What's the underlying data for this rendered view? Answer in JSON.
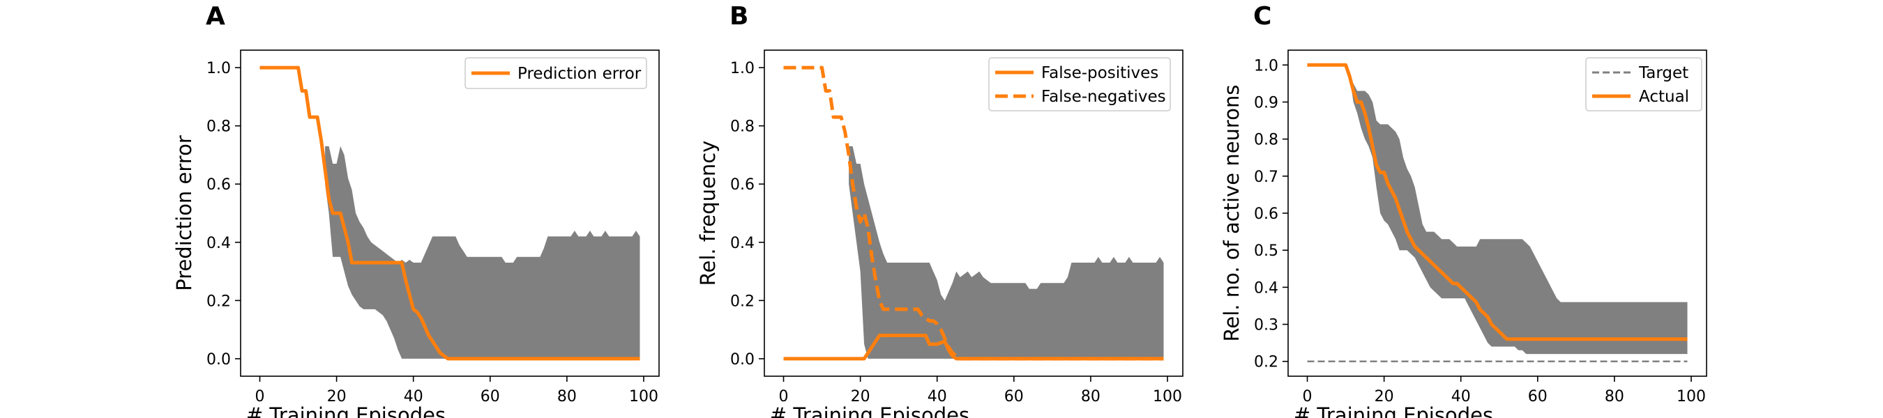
{
  "colors": {
    "series": "#ff7f0e",
    "band": "#808080",
    "target": "#808080",
    "axis": "#000000"
  },
  "chart_data": [
    {
      "panel": "A",
      "type": "line",
      "xlabel": "# Training Episodes",
      "ylabel": "Prediction error",
      "xlim": [
        -5,
        104
      ],
      "ylim": [
        -0.06,
        1.06
      ],
      "xticks": [
        0,
        20,
        40,
        60,
        80,
        100
      ],
      "yticks": [
        0.0,
        0.2,
        0.4,
        0.6,
        0.8,
        1.0
      ],
      "legend_position": "top-right",
      "band": {
        "x": [
          17,
          18,
          19,
          20,
          21,
          22,
          23,
          24,
          25,
          26,
          27,
          28,
          29,
          30,
          31,
          32,
          33,
          34,
          35,
          36,
          37,
          38,
          39,
          40,
          41,
          42,
          43,
          44,
          45,
          46,
          47,
          48,
          49,
          50,
          51,
          52,
          53,
          54,
          55,
          56,
          57,
          58,
          59,
          60,
          61,
          62,
          63,
          64,
          65,
          66,
          67,
          68,
          69,
          70,
          71,
          72,
          73,
          74,
          75,
          76,
          77,
          78,
          79,
          80,
          81,
          82,
          83,
          84,
          85,
          86,
          87,
          88,
          89,
          90,
          91,
          92,
          93,
          94,
          95,
          96,
          97,
          98,
          99
        ],
        "upper": [
          0.73,
          0.73,
          0.67,
          0.67,
          0.73,
          0.7,
          0.62,
          0.58,
          0.5,
          0.47,
          0.45,
          0.42,
          0.4,
          0.39,
          0.38,
          0.37,
          0.36,
          0.35,
          0.34,
          0.33,
          0.34,
          0.33,
          0.34,
          0.33,
          0.33,
          0.33,
          0.36,
          0.39,
          0.42,
          0.42,
          0.42,
          0.42,
          0.42,
          0.42,
          0.42,
          0.39,
          0.37,
          0.35,
          0.35,
          0.35,
          0.35,
          0.35,
          0.35,
          0.35,
          0.35,
          0.35,
          0.35,
          0.33,
          0.33,
          0.33,
          0.35,
          0.35,
          0.35,
          0.35,
          0.35,
          0.35,
          0.35,
          0.38,
          0.42,
          0.42,
          0.42,
          0.42,
          0.42,
          0.42,
          0.42,
          0.44,
          0.42,
          0.42,
          0.42,
          0.44,
          0.42,
          0.42,
          0.42,
          0.44,
          0.42,
          0.42,
          0.42,
          0.42,
          0.42,
          0.42,
          0.42,
          0.44,
          0.42
        ],
        "lower": [
          0.6,
          0.5,
          0.35,
          0.35,
          0.35,
          0.3,
          0.25,
          0.22,
          0.2,
          0.18,
          0.17,
          0.17,
          0.17,
          0.17,
          0.16,
          0.15,
          0.13,
          0.1,
          0.07,
          0.03,
          0.0,
          0.0,
          0.0,
          0.0,
          0.0,
          0.0,
          0.0,
          0.0,
          0.0,
          0.0,
          0.0,
          0.0,
          0.0,
          0.0,
          0.0,
          0.0,
          0.0,
          0.0,
          0.0,
          0.0,
          0.0,
          0.0,
          0.0,
          0.0,
          0.0,
          0.0,
          0.0,
          0.0,
          0.0,
          0.0,
          0.0,
          0.0,
          0.0,
          0.0,
          0.0,
          0.0,
          0.0,
          0.0,
          0.0,
          0.0,
          0.0,
          0.0,
          0.0,
          0.0,
          0.0,
          0.0,
          0.0,
          0.0,
          0.0,
          0.0,
          0.0,
          0.0,
          0.0,
          0.0,
          0.0,
          0.0,
          0.0,
          0.0,
          0.0,
          0.0,
          0.0,
          0.0,
          0.0
        ]
      },
      "series": [
        {
          "name": "Prediction error",
          "style": "solid",
          "x": [
            0,
            10,
            11,
            12,
            13,
            14,
            15,
            16,
            17,
            18,
            19,
            20,
            21,
            22,
            23,
            24,
            25,
            30,
            35,
            37,
            38,
            39,
            40,
            41,
            42,
            43,
            44,
            45,
            46,
            47,
            48,
            49,
            50,
            60,
            70,
            80,
            90,
            99
          ],
          "y": [
            1.0,
            1.0,
            0.92,
            0.92,
            0.83,
            0.83,
            0.83,
            0.75,
            0.65,
            0.55,
            0.5,
            0.5,
            0.5,
            0.45,
            0.4,
            0.33,
            0.33,
            0.33,
            0.33,
            0.33,
            0.27,
            0.22,
            0.17,
            0.16,
            0.14,
            0.11,
            0.08,
            0.06,
            0.04,
            0.02,
            0.01,
            0.0,
            0.0,
            0.0,
            0.0,
            0.0,
            0.0,
            0.0
          ]
        }
      ]
    },
    {
      "panel": "B",
      "type": "line",
      "xlabel": "# Training Episodes",
      "ylabel": "Rel. frequency",
      "xlim": [
        -5,
        104
      ],
      "ylim": [
        -0.06,
        1.06
      ],
      "xticks": [
        0,
        20,
        40,
        60,
        80,
        100
      ],
      "yticks": [
        0.0,
        0.2,
        0.4,
        0.6,
        0.8,
        1.0
      ],
      "legend_position": "top-right",
      "band": {
        "x": [
          17,
          18,
          19,
          20,
          21,
          22,
          23,
          24,
          25,
          26,
          27,
          28,
          29,
          30,
          31,
          32,
          33,
          34,
          35,
          36,
          37,
          38,
          39,
          40,
          41,
          42,
          43,
          44,
          45,
          46,
          47,
          48,
          49,
          50,
          51,
          52,
          53,
          54,
          55,
          56,
          57,
          58,
          59,
          60,
          61,
          62,
          63,
          64,
          65,
          66,
          67,
          68,
          69,
          70,
          71,
          72,
          73,
          74,
          75,
          76,
          77,
          78,
          79,
          80,
          81,
          82,
          83,
          84,
          85,
          86,
          87,
          88,
          89,
          90,
          91,
          92,
          93,
          94,
          95,
          96,
          97,
          98,
          99
        ],
        "upper": [
          0.73,
          0.73,
          0.67,
          0.67,
          0.6,
          0.55,
          0.5,
          0.45,
          0.4,
          0.36,
          0.33,
          0.33,
          0.33,
          0.33,
          0.33,
          0.33,
          0.33,
          0.33,
          0.33,
          0.33,
          0.33,
          0.33,
          0.3,
          0.27,
          0.22,
          0.2,
          0.23,
          0.26,
          0.3,
          0.28,
          0.29,
          0.3,
          0.28,
          0.29,
          0.3,
          0.28,
          0.27,
          0.26,
          0.26,
          0.26,
          0.26,
          0.26,
          0.26,
          0.26,
          0.26,
          0.26,
          0.26,
          0.24,
          0.24,
          0.24,
          0.26,
          0.26,
          0.26,
          0.26,
          0.26,
          0.26,
          0.26,
          0.28,
          0.33,
          0.33,
          0.33,
          0.33,
          0.33,
          0.33,
          0.33,
          0.35,
          0.33,
          0.33,
          0.33,
          0.35,
          0.33,
          0.33,
          0.33,
          0.35,
          0.33,
          0.33,
          0.33,
          0.33,
          0.33,
          0.33,
          0.33,
          0.35,
          0.33
        ],
        "lower": [
          0.6,
          0.5,
          0.4,
          0.3,
          0.05,
          0.0,
          0.0,
          0.0,
          0.0,
          0.0,
          0.0,
          0.0,
          0.0,
          0.0,
          0.0,
          0.0,
          0.0,
          0.0,
          0.0,
          0.0,
          0.0,
          0.0,
          0.0,
          0.0,
          0.0,
          0.0,
          0.0,
          0.0,
          0.0,
          0.0,
          0.0,
          0.0,
          0.0,
          0.0,
          0.0,
          0.0,
          0.0,
          0.0,
          0.0,
          0.0,
          0.0,
          0.0,
          0.0,
          0.0,
          0.0,
          0.0,
          0.0,
          0.0,
          0.0,
          0.0,
          0.0,
          0.0,
          0.0,
          0.0,
          0.0,
          0.0,
          0.0,
          0.0,
          0.0,
          0.0,
          0.0,
          0.0,
          0.0,
          0.0,
          0.0,
          0.0,
          0.0,
          0.0,
          0.0,
          0.0,
          0.0,
          0.0,
          0.0,
          0.0,
          0.0,
          0.0,
          0.0,
          0.0,
          0.0,
          0.0,
          0.0,
          0.0,
          0.0
        ]
      },
      "series": [
        {
          "name": "False-positives",
          "style": "solid",
          "x": [
            0,
            20,
            21,
            22,
            23,
            24,
            25,
            26,
            30,
            35,
            37,
            38,
            40,
            42,
            43,
            44,
            45,
            46,
            50,
            60,
            70,
            80,
            90,
            99
          ],
          "y": [
            0.0,
            0.0,
            0.0,
            0.02,
            0.04,
            0.06,
            0.08,
            0.08,
            0.08,
            0.08,
            0.08,
            0.05,
            0.05,
            0.06,
            0.03,
            0.01,
            0.0,
            0.0,
            0.0,
            0.0,
            0.0,
            0.0,
            0.0,
            0.0
          ]
        },
        {
          "name": "False-negatives",
          "style": "dashed",
          "x": [
            0,
            10,
            11,
            12,
            13,
            14,
            15,
            16,
            17,
            18,
            19,
            20,
            21,
            22,
            23,
            24,
            25,
            26,
            28,
            30,
            32,
            35,
            36,
            37,
            38,
            39,
            40,
            41,
            42,
            43,
            44,
            45,
            46,
            50,
            60,
            70,
            80,
            90,
            99
          ],
          "y": [
            1.0,
            1.0,
            0.92,
            0.92,
            0.83,
            0.83,
            0.83,
            0.78,
            0.7,
            0.6,
            0.52,
            0.47,
            0.5,
            0.45,
            0.35,
            0.27,
            0.2,
            0.17,
            0.17,
            0.17,
            0.17,
            0.17,
            0.15,
            0.14,
            0.13,
            0.13,
            0.12,
            0.1,
            0.07,
            0.04,
            0.02,
            0.01,
            0.0,
            0.0,
            0.0,
            0.0,
            0.0,
            0.0,
            0.0
          ]
        }
      ]
    },
    {
      "panel": "C",
      "type": "line",
      "xlabel": "# Training Episodes",
      "ylabel": "Rel. no. of active neurons",
      "xlim": [
        -5,
        104
      ],
      "ylim": [
        0.16,
        1.04
      ],
      "xticks": [
        0,
        20,
        40,
        60,
        80,
        100
      ],
      "yticks": [
        0.2,
        0.3,
        0.4,
        0.5,
        0.6,
        0.7,
        0.8,
        0.9,
        1.0
      ],
      "legend_position": "top-right",
      "band": {
        "x": [
          10,
          11,
          12,
          13,
          14,
          15,
          16,
          17,
          18,
          19,
          20,
          21,
          22,
          23,
          24,
          25,
          26,
          27,
          28,
          29,
          30,
          31,
          32,
          33,
          34,
          35,
          36,
          37,
          38,
          39,
          40,
          41,
          42,
          43,
          44,
          45,
          46,
          47,
          48,
          49,
          50,
          51,
          52,
          53,
          54,
          55,
          56,
          57,
          58,
          59,
          60,
          61,
          62,
          63,
          64,
          65,
          66,
          70,
          80,
          90,
          99
        ],
        "upper": [
          1.0,
          0.97,
          0.95,
          0.93,
          0.93,
          0.93,
          0.92,
          0.9,
          0.85,
          0.84,
          0.84,
          0.84,
          0.83,
          0.82,
          0.8,
          0.75,
          0.72,
          0.7,
          0.67,
          0.62,
          0.57,
          0.55,
          0.55,
          0.55,
          0.54,
          0.53,
          0.53,
          0.53,
          0.52,
          0.51,
          0.51,
          0.51,
          0.51,
          0.51,
          0.51,
          0.53,
          0.53,
          0.53,
          0.53,
          0.53,
          0.53,
          0.53,
          0.53,
          0.53,
          0.53,
          0.53,
          0.53,
          0.52,
          0.51,
          0.49,
          0.47,
          0.45,
          0.43,
          0.41,
          0.39,
          0.37,
          0.36,
          0.36,
          0.36,
          0.36,
          0.36
        ],
        "lower": [
          1.0,
          0.97,
          0.9,
          0.87,
          0.83,
          0.8,
          0.78,
          0.75,
          0.67,
          0.6,
          0.58,
          0.57,
          0.55,
          0.53,
          0.5,
          0.5,
          0.5,
          0.49,
          0.48,
          0.46,
          0.44,
          0.42,
          0.4,
          0.39,
          0.38,
          0.37,
          0.37,
          0.37,
          0.37,
          0.37,
          0.37,
          0.37,
          0.35,
          0.33,
          0.31,
          0.29,
          0.27,
          0.25,
          0.24,
          0.24,
          0.24,
          0.24,
          0.24,
          0.24,
          0.24,
          0.23,
          0.23,
          0.22,
          0.22,
          0.22,
          0.22,
          0.22,
          0.22,
          0.22,
          0.22,
          0.22,
          0.22,
          0.22,
          0.22,
          0.22,
          0.22
        ]
      },
      "series": [
        {
          "name": "Target",
          "style": "dashed-thin",
          "x": [
            0,
            99
          ],
          "y": [
            0.2,
            0.2
          ]
        },
        {
          "name": "Actual",
          "style": "solid",
          "x": [
            0,
            10,
            11,
            12,
            13,
            14,
            15,
            16,
            17,
            18,
            19,
            20,
            21,
            22,
            23,
            24,
            25,
            26,
            27,
            28,
            29,
            30,
            31,
            32,
            33,
            34,
            35,
            36,
            37,
            38,
            39,
            40,
            41,
            42,
            43,
            44,
            45,
            46,
            47,
            48,
            49,
            50,
            51,
            52,
            53,
            60,
            70,
            80,
            90,
            99
          ],
          "y": [
            1.0,
            1.0,
            0.97,
            0.93,
            0.9,
            0.9,
            0.87,
            0.83,
            0.78,
            0.73,
            0.71,
            0.71,
            0.68,
            0.66,
            0.64,
            0.61,
            0.58,
            0.55,
            0.53,
            0.51,
            0.5,
            0.49,
            0.48,
            0.47,
            0.46,
            0.45,
            0.44,
            0.43,
            0.42,
            0.41,
            0.41,
            0.4,
            0.39,
            0.38,
            0.37,
            0.36,
            0.34,
            0.33,
            0.32,
            0.3,
            0.29,
            0.28,
            0.27,
            0.26,
            0.26,
            0.26,
            0.26,
            0.26,
            0.26,
            0.26
          ]
        }
      ]
    }
  ]
}
